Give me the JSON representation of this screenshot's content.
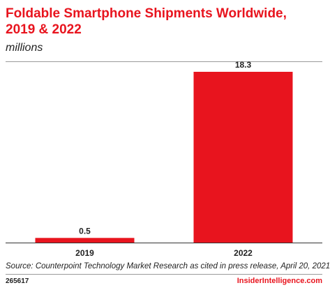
{
  "chart_data": {
    "type": "bar",
    "title": "Foldable Smartphone Shipments Worldwide, 2019 & 2022",
    "subtitle": "millions",
    "categories": [
      "2019",
      "2022"
    ],
    "values": [
      0.5,
      18.3
    ],
    "value_labels": [
      "0.5",
      "18.3"
    ],
    "ylim": [
      0,
      18.3
    ],
    "grid": false,
    "legend": "none",
    "bar_color": "#e8141e"
  },
  "footer": {
    "source": "Source: Counterpoint Technology Market Research as cited in press release, April 20, 2021",
    "chart_id": "265617",
    "brand": "InsiderIntelligence.com",
    "brand_color": "#e8141e"
  }
}
